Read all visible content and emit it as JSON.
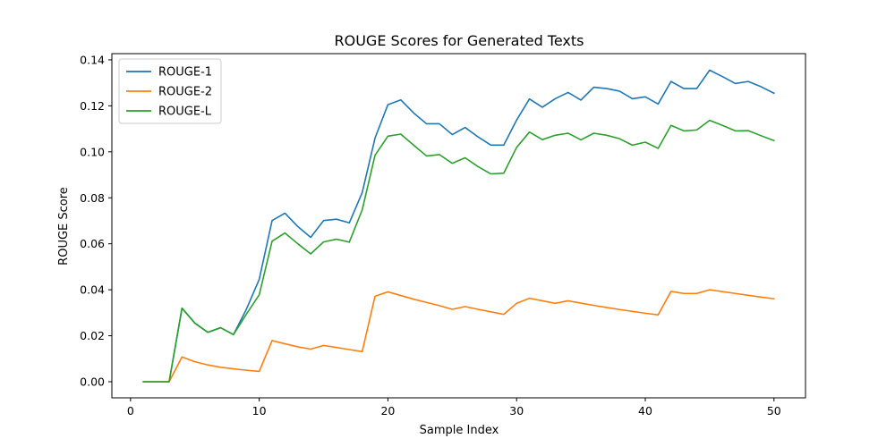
{
  "chart_data": {
    "type": "line",
    "title": "ROUGE Scores for Generated Texts",
    "xlabel": "Sample Index",
    "ylabel": "ROUGE Score",
    "xlim": [
      -1.45,
      52.45
    ],
    "ylim": [
      -0.007,
      0.1427
    ],
    "xticks": [
      0,
      10,
      20,
      30,
      40,
      50
    ],
    "yticks": [
      0.0,
      0.02,
      0.04,
      0.06,
      0.08,
      0.1,
      0.12,
      0.14
    ],
    "grid": false,
    "legend": "upper-left",
    "x": [
      1,
      2,
      3,
      4,
      5,
      6,
      7,
      8,
      9,
      10,
      11,
      12,
      13,
      14,
      15,
      16,
      17,
      18,
      19,
      20,
      21,
      22,
      23,
      24,
      25,
      26,
      27,
      28,
      29,
      30,
      31,
      32,
      33,
      34,
      35,
      36,
      37,
      38,
      39,
      40,
      41,
      42,
      43,
      44,
      45,
      46,
      47,
      48,
      49,
      50
    ],
    "series": [
      {
        "name": "ROUGE-1",
        "color": "#1f77b4",
        "values": [
          0.0,
          0.0,
          0.0,
          0.032,
          0.0255,
          0.0215,
          0.0235,
          0.0205,
          0.0315,
          0.0445,
          0.0701,
          0.0733,
          0.0675,
          0.0628,
          0.0701,
          0.0707,
          0.0691,
          0.0822,
          0.106,
          0.1205,
          0.1226,
          0.1169,
          0.1122,
          0.1122,
          0.1075,
          0.1106,
          0.1065,
          0.1029,
          0.1029,
          0.1138,
          0.123,
          0.1194,
          0.1231,
          0.1258,
          0.1225,
          0.1281,
          0.1275,
          0.1264,
          0.1231,
          0.1239,
          0.1208,
          0.1306,
          0.1275,
          0.1275,
          0.1355,
          0.1327,
          0.1297,
          0.1306,
          0.1283,
          0.1255
        ]
      },
      {
        "name": "ROUGE-2",
        "color": "#ff7f0e",
        "values": [
          0.0,
          0.0,
          0.0,
          0.0108,
          0.0087,
          0.0073,
          0.0063,
          0.0056,
          0.005,
          0.0045,
          0.0179,
          0.0165,
          0.0152,
          0.0142,
          0.0158,
          0.0149,
          0.014,
          0.0131,
          0.0372,
          0.0391,
          0.0375,
          0.0359,
          0.0345,
          0.0331,
          0.0315,
          0.0327,
          0.0315,
          0.0304,
          0.0293,
          0.0341,
          0.0363,
          0.0352,
          0.0341,
          0.0352,
          0.0342,
          0.0332,
          0.0323,
          0.0314,
          0.0306,
          0.0298,
          0.0291,
          0.0393,
          0.0384,
          0.0384,
          0.04,
          0.0392,
          0.0384,
          0.0376,
          0.0368,
          0.0361
        ]
      },
      {
        "name": "ROUGE-L",
        "color": "#2ca02c",
        "values": [
          0.0,
          0.0,
          0.0,
          0.032,
          0.0255,
          0.0215,
          0.0235,
          0.0205,
          0.0294,
          0.0378,
          0.0611,
          0.0647,
          0.06,
          0.0556,
          0.0608,
          0.062,
          0.0607,
          0.0747,
          0.0985,
          0.1068,
          0.1077,
          0.1029,
          0.0982,
          0.0988,
          0.095,
          0.0974,
          0.0936,
          0.0904,
          0.0907,
          0.1019,
          0.1086,
          0.1053,
          0.1072,
          0.1081,
          0.1052,
          0.1081,
          0.1072,
          0.1057,
          0.1029,
          0.1042,
          0.1015,
          0.1115,
          0.1091,
          0.1095,
          0.1137,
          0.1115,
          0.1091,
          0.1092,
          0.107,
          0.1049
        ]
      }
    ]
  }
}
